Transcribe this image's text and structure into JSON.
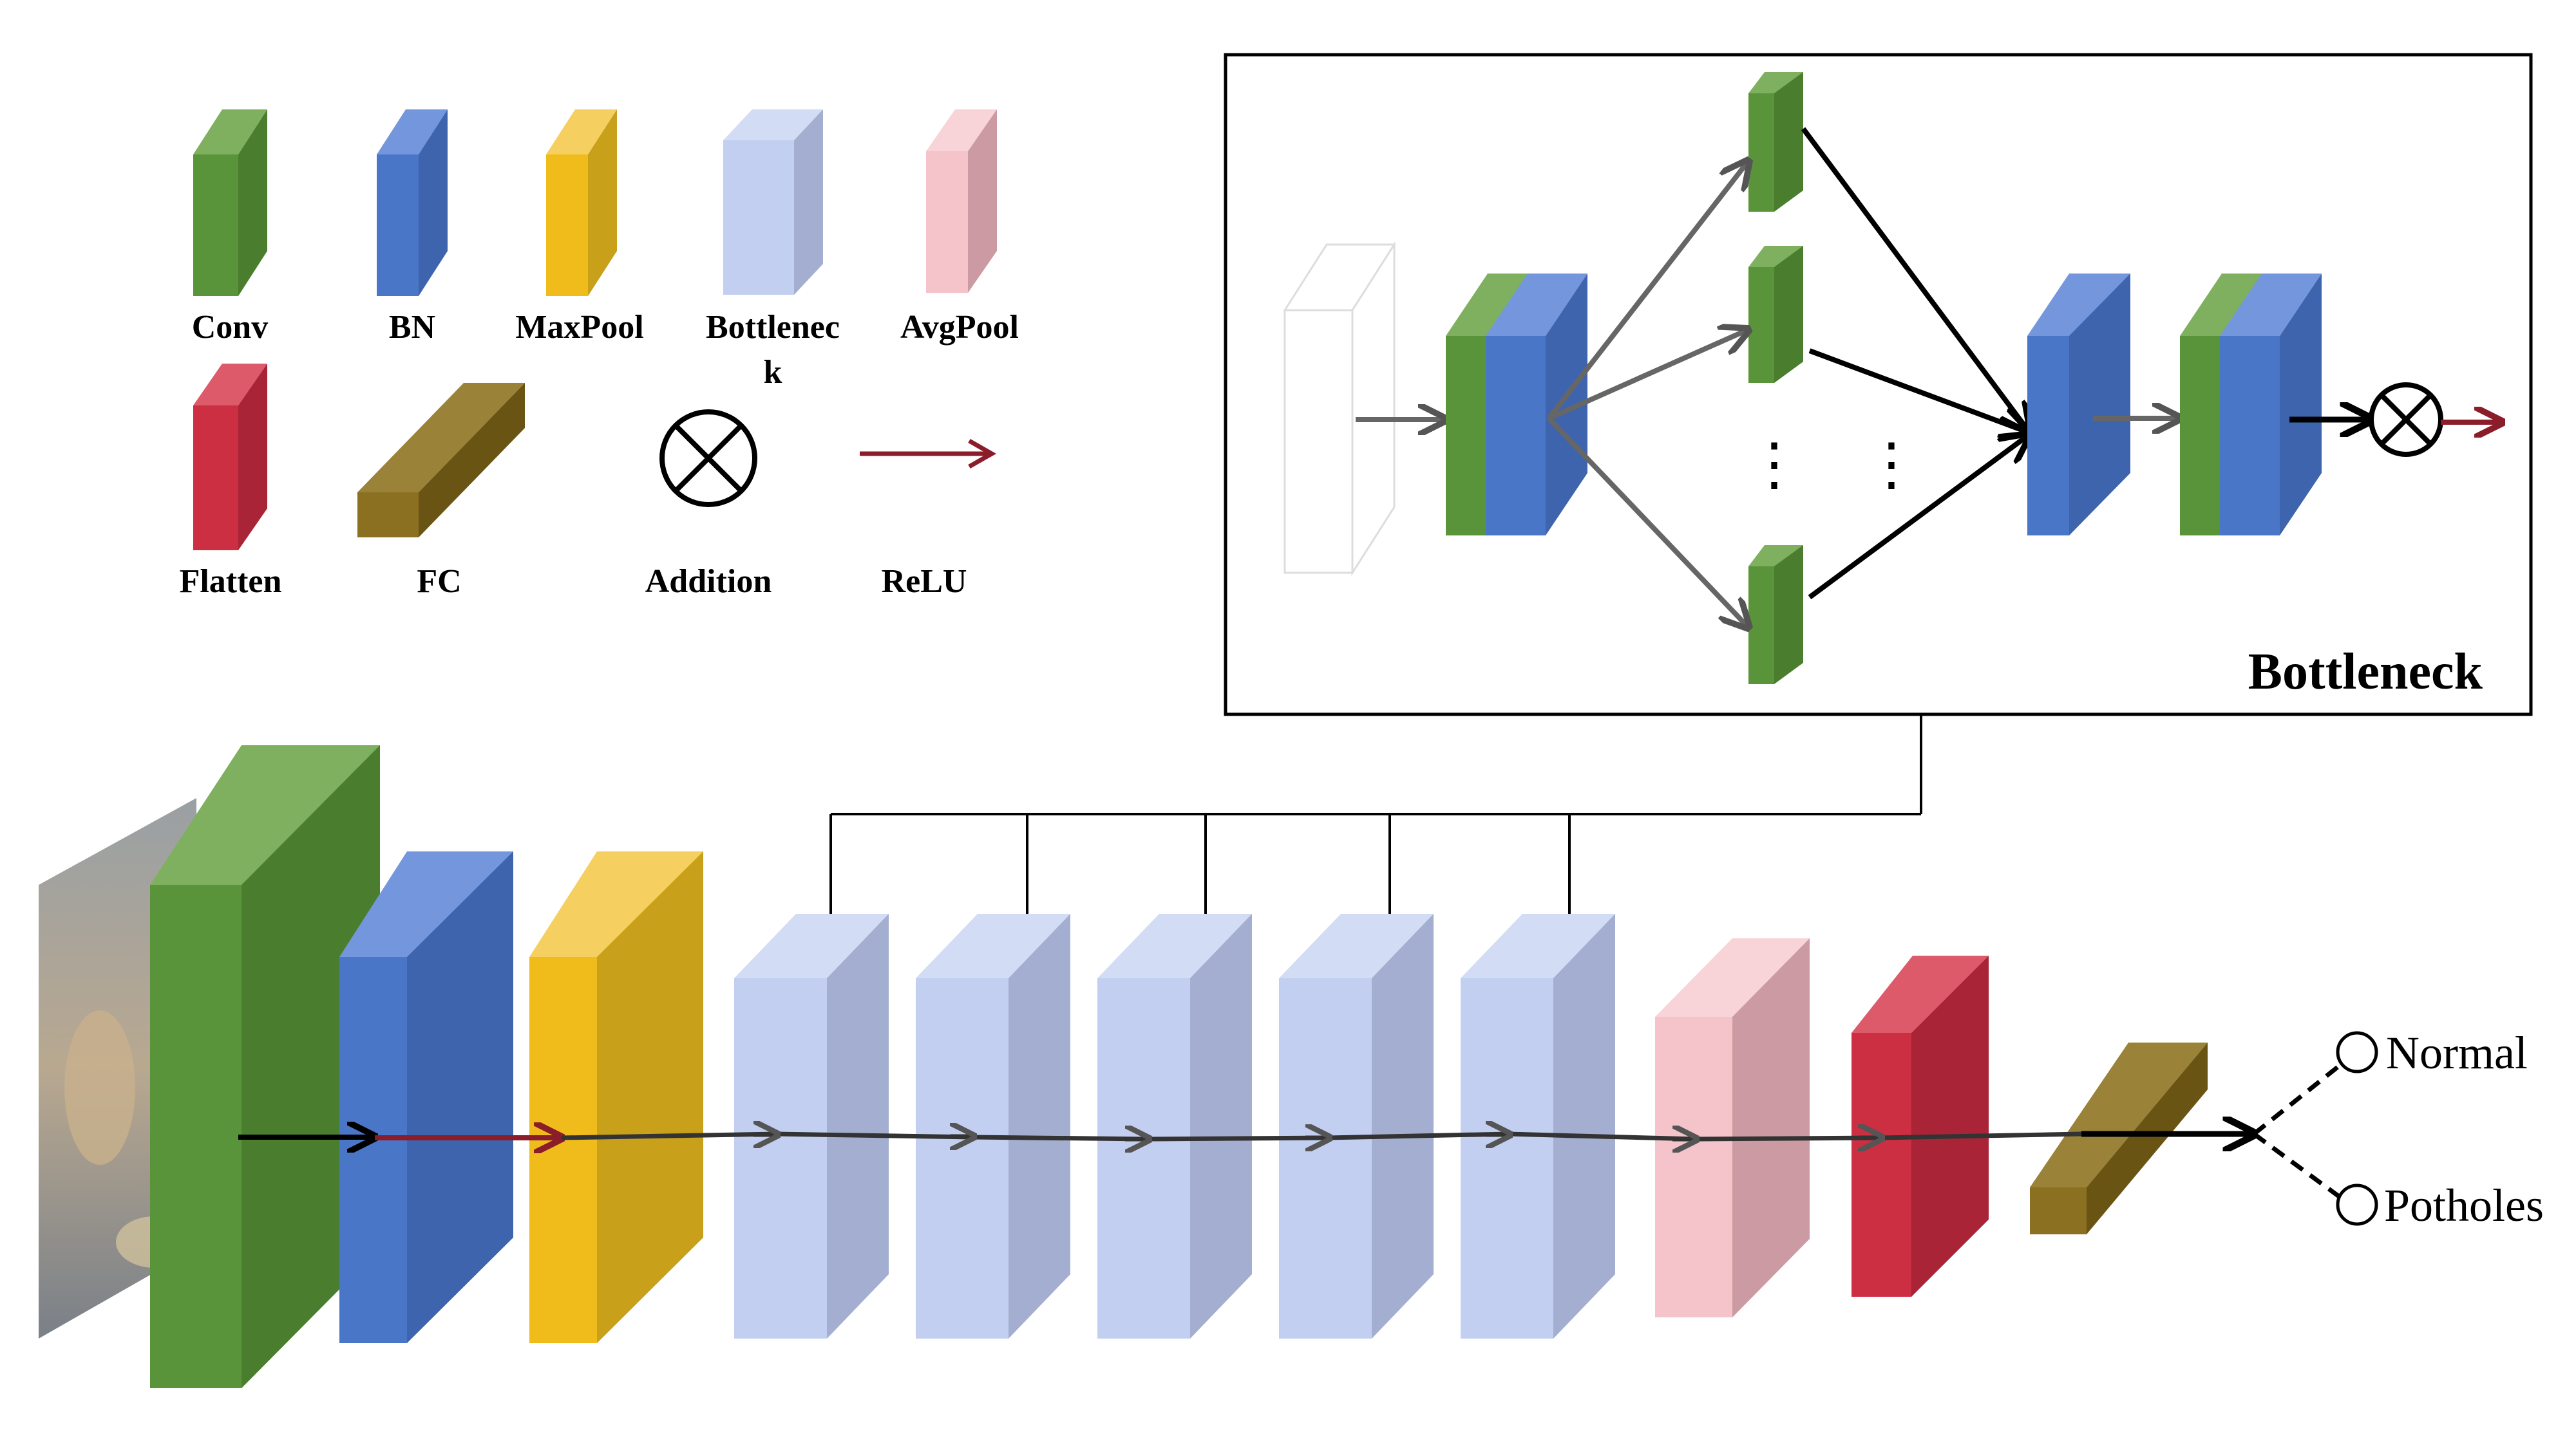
{
  "colors": {
    "conv": "#5a943a",
    "bn": "#4a76c8",
    "maxpool": "#f0bc1c",
    "bottleneck": "#c3cff0",
    "avgpool": "#f5c3ca",
    "flatten": "#cc2e42",
    "fc": "#8a7020",
    "relu_arrow": "#8b1d2a",
    "gray_arrow": "#666666",
    "black_arrow": "#000000"
  },
  "legend": {
    "items": [
      {
        "id": "conv",
        "label": "Conv",
        "icon": "green-block-icon"
      },
      {
        "id": "bn",
        "label": "BN",
        "icon": "blue-block-icon"
      },
      {
        "id": "maxpool",
        "label": "MaxPool",
        "icon": "yellow-block-icon"
      },
      {
        "id": "bottleneck",
        "label_line1": "Bottlenec",
        "label_line2": "k",
        "icon": "lightblue-block-icon"
      },
      {
        "id": "avgpool",
        "label": "AvgPool",
        "icon": "pink-block-icon"
      },
      {
        "id": "flatten",
        "label": "Flatten",
        "icon": "red-block-icon"
      },
      {
        "id": "fc",
        "label": "FC",
        "icon": "olive-bar-icon"
      },
      {
        "id": "addition",
        "label": "Addition",
        "icon": "circled-x-icon"
      },
      {
        "id": "relu",
        "label": "ReLU",
        "icon": "dark-red-arrow-icon"
      }
    ]
  },
  "bottleneck_panel": {
    "title": "Bottleneck",
    "ellipsis_left": "⋮",
    "ellipsis_right": "⋮"
  },
  "outputs": {
    "normal": "Normal",
    "potholes": "Potholes"
  }
}
